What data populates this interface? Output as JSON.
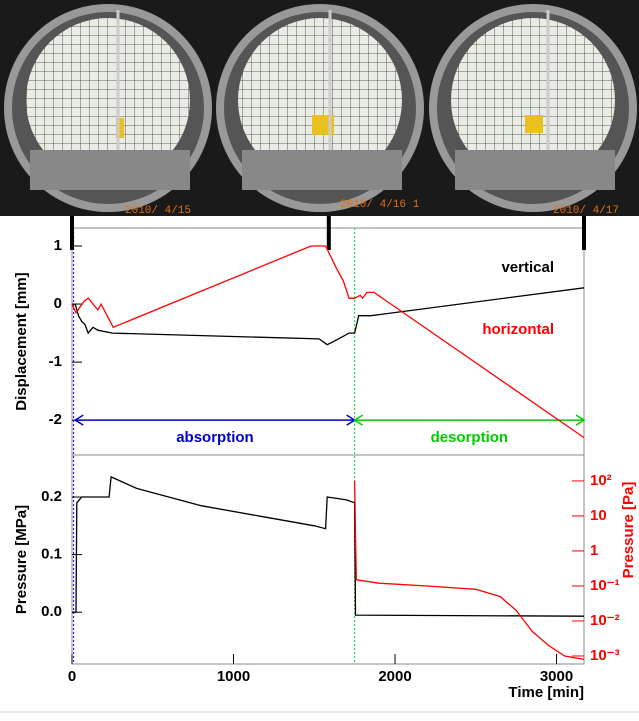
{
  "photos": [
    {
      "stamp": "2010/ 4/15"
    },
    {
      "stamp": "2010/ 4/16 1"
    },
    {
      "stamp": "2010/ 4/17"
    }
  ],
  "chart_data": [
    {
      "type": "line",
      "ylabel": "Displacement [mm]",
      "xlim": [
        0,
        3170
      ],
      "ylim": [
        -2.6,
        1.31
      ],
      "yticks": [
        -2,
        -1,
        0,
        1
      ],
      "photo_times": [
        0,
        1590,
        3170
      ],
      "vlines": [
        {
          "x": 10,
          "color": "#0000ff"
        },
        {
          "x": 1750,
          "color": "#00dd00"
        }
      ],
      "annotations": [
        {
          "text": "absorption",
          "x": [
            20,
            1750
          ],
          "y": -2,
          "color": "#0000cc"
        },
        {
          "text": "desorption",
          "x": [
            1750,
            3170
          ],
          "y": -2,
          "color": "#00cc00"
        }
      ],
      "series": [
        {
          "name": "vertical",
          "color": "#000000",
          "x": [
            0,
            20,
            40,
            60,
            80,
            100,
            130,
            160,
            250,
            1530,
            1580,
            1650,
            1715,
            1750,
            1775,
            1850,
            3170
          ],
          "values": [
            0,
            0,
            -0.2,
            -0.3,
            -0.35,
            -0.5,
            -0.4,
            -0.45,
            -0.5,
            -0.6,
            -0.7,
            -0.6,
            -0.5,
            -0.5,
            -0.2,
            -0.2,
            0.28
          ]
        },
        {
          "name": "horizontal",
          "color": "#ff0000",
          "x": [
            0,
            25,
            75,
            100,
            160,
            180,
            255,
            1480,
            1570,
            1640,
            1680,
            1715,
            1750,
            1785,
            1800,
            1825,
            1870,
            3170
          ],
          "values": [
            0,
            -0.15,
            0.05,
            0.1,
            -0.1,
            0,
            -0.4,
            1.0,
            1.0,
            0.6,
            0.4,
            0.1,
            0.1,
            0.15,
            0.1,
            0.2,
            0.2,
            -2.3
          ]
        }
      ]
    },
    {
      "type": "line",
      "ylabel": "Pressure [MPa]",
      "y2label": "Pressure [Pa]",
      "xlabel": "Time [min]",
      "xlim": [
        0,
        3170
      ],
      "xticks": [
        0,
        1000,
        2000,
        3000
      ],
      "ylim": [
        -0.09,
        0.273
      ],
      "yticks": [
        {
          "value": 0,
          "label": "0.0"
        },
        {
          "value": 0.1,
          "label": "0.1"
        },
        {
          "value": 0.2,
          "label": "0.2"
        }
      ],
      "y2lim": [
        0.00059,
        550
      ],
      "y2log": true,
      "y2ticks": [
        {
          "value": 0.001,
          "label": "10⁻³"
        },
        {
          "value": 0.01,
          "label": "10⁻²"
        },
        {
          "value": 0.1,
          "label": "10⁻¹"
        },
        1,
        10,
        {
          "value": 100,
          "label": "10²"
        }
      ],
      "series": [
        {
          "color": "#000000",
          "x": [
            0,
            25,
            30,
            60,
            100,
            230,
            242,
            400,
            800,
            1200,
            1500,
            1570,
            1580,
            1700,
            1750,
            1755,
            3170
          ],
          "values": [
            0,
            0,
            0.19,
            0.2,
            0.2,
            0.2,
            0.235,
            0.215,
            0.185,
            0.165,
            0.15,
            0.145,
            0.2,
            0.195,
            0.19,
            -0.005,
            -0.007
          ]
        },
        {
          "color": "#ff0000",
          "axis": "y2",
          "x": [
            1750,
            1760,
            1900,
            2200,
            2500,
            2650,
            2750,
            2850,
            2950,
            3050,
            3170
          ],
          "values": [
            100,
            0.15,
            0.12,
            0.1,
            0.08,
            0.05,
            0.02,
            0.005,
            0.002,
            0.001,
            0.0008
          ]
        }
      ]
    }
  ]
}
